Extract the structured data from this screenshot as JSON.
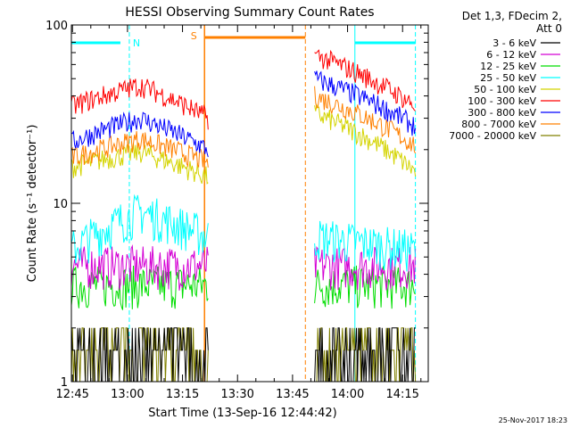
{
  "chart_data": {
    "type": "line",
    "title": "HESSI Observing Summary Count Rates",
    "ylabel": "Count Rate (s⁻¹ detector⁻¹)",
    "xlabel": "Start Time (13-Sep-16 12:44:42)",
    "y_scale": "log",
    "ylim": [
      1,
      100
    ],
    "xlim": [
      "12:44:42",
      "14:22:00"
    ],
    "x_ticks": [
      "12:45",
      "13:00",
      "13:15",
      "13:30",
      "13:45",
      "14:00",
      "14:15"
    ],
    "y_ticks": [
      "1",
      "10",
      "100"
    ],
    "legend": {
      "header": "Det 1,3, FDecim 2,",
      "header2": "Att 0",
      "placement": "right"
    },
    "footer_timestamp": "25-Nov-2017 18:23",
    "series": [
      {
        "name": "3 - 6 keV",
        "color": "#000000",
        "segments": [
          {
            "from": "12:44:42",
            "to": "13:22:00",
            "values": [
              1.3,
              1.3
            ]
          },
          {
            "from": "13:51:00",
            "to": "14:18:30",
            "values": [
              1.3,
              1.3
            ]
          }
        ]
      },
      {
        "name": "6 - 12 keV",
        "color": "#d400d4",
        "segments": [
          {
            "from": "12:44:42",
            "to": "13:22:00",
            "values": [
              4.5,
              4.5
            ]
          },
          {
            "from": "13:51:00",
            "to": "14:18:30",
            "values": [
              4.5,
              4.5
            ]
          }
        ]
      },
      {
        "name": "12 - 25 keV",
        "color": "#00dd00",
        "segments": [
          {
            "from": "12:44:42",
            "to": "13:22:00",
            "values": [
              3.5,
              3.5
            ]
          },
          {
            "from": "13:51:00",
            "to": "14:18:30",
            "values": [
              3.5,
              3.5
            ]
          }
        ]
      },
      {
        "name": "25 - 50 keV",
        "color": "#00ffff",
        "segments": [
          {
            "from": "12:44:42",
            "to": "13:22:00",
            "values": [
              5.5,
              9.0,
              6.5
            ]
          },
          {
            "from": "13:51:00",
            "to": "14:18:30",
            "values": [
              6.5,
              5.5
            ]
          }
        ]
      },
      {
        "name": "50 - 100 keV",
        "color": "#d4d400",
        "segments": [
          {
            "from": "12:44:42",
            "to": "13:22:00",
            "values": [
              16.0,
              19.5,
              14.0
            ]
          },
          {
            "from": "13:51:00",
            "to": "14:18:30",
            "values": [
              32.0,
              15.0
            ]
          }
        ]
      },
      {
        "name": "100 - 300 keV",
        "color": "#ff0000",
        "segments": [
          {
            "from": "12:44:42",
            "to": "13:22:00",
            "values": [
              35.0,
              46.0,
              30.0
            ]
          },
          {
            "from": "13:51:00",
            "to": "14:18:30",
            "values": [
              68.0,
              35.0
            ]
          }
        ]
      },
      {
        "name": "300 - 800 keV",
        "color": "#0000ff",
        "segments": [
          {
            "from": "12:44:42",
            "to": "13:22:00",
            "values": [
              22.0,
              30.0,
              20.0
            ]
          },
          {
            "from": "13:51:00",
            "to": "14:18:30",
            "values": [
              50.0,
              27.0
            ]
          }
        ]
      },
      {
        "name": "800 - 7000 keV",
        "color": "#ff8000",
        "segments": [
          {
            "from": "12:44:42",
            "to": "13:22:00",
            "values": [
              18.0,
              23.0,
              17.0
            ]
          },
          {
            "from": "13:51:00",
            "to": "14:18:30",
            "values": [
              40.0,
              21.0
            ]
          }
        ]
      },
      {
        "name": "7000 - 20000 keV",
        "color": "#808000",
        "segments": [
          {
            "from": "12:44:42",
            "to": "13:22:00",
            "values": [
              1.5,
              1.5
            ]
          },
          {
            "from": "13:51:00",
            "to": "14:18:30",
            "values": [
              1.5,
              1.5
            ]
          }
        ]
      }
    ],
    "annotations": [
      {
        "label": "N",
        "color": "#00ffff",
        "type": "night",
        "from": "12:44:42",
        "to": "13:00:30"
      },
      {
        "label": "",
        "color": "#00ffff",
        "type": "night",
        "from": "14:02:00",
        "to": "14:18:30"
      },
      {
        "label": "S",
        "color": "#ff8000",
        "type": "saa",
        "from": "13:21:00",
        "to": "13:48:30"
      }
    ]
  }
}
